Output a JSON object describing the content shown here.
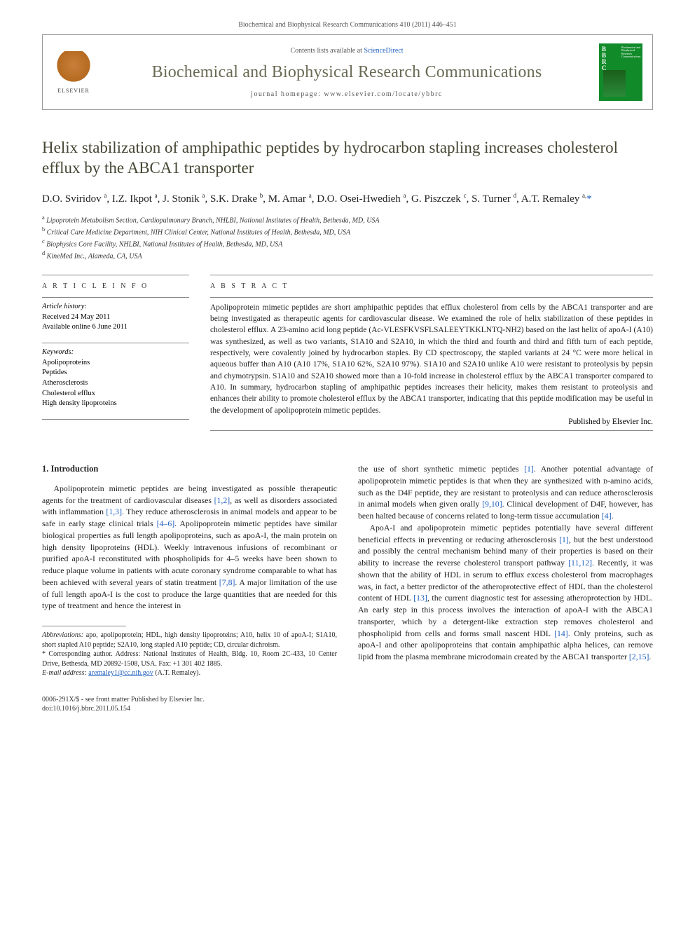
{
  "citation": "Biochemical and Biophysical Research Communications 410 (2011) 446–451",
  "header": {
    "contents_prefix": "Contents lists available at ",
    "contents_link": "ScienceDirect",
    "journal": "Biochemical and Biophysical Research Communications",
    "homepage_prefix": "journal homepage: ",
    "homepage": "www.elsevier.com/locate/ybbrc",
    "publisher": "ELSEVIER",
    "cover_abbr": "B\nB\nR\nC",
    "cover_side": "Biochemical and Biophysical Research Communications"
  },
  "title": "Helix stabilization of amphipathic peptides by hydrocarbon stapling increases cholesterol efflux by the ABCA1 transporter",
  "authors_html": "D.O. Sviridov <sup>a</sup>, I.Z. Ikpot <sup>a</sup>, J. Stonik <sup>a</sup>, S.K. Drake <sup>b</sup>, M. Amar <sup>a</sup>, D.O. Osei-Hwedieh <sup>a</sup>, G. Piszczek <sup>c</sup>, S. Turner <sup>d</sup>, A.T. Remaley <sup>a,</sup><span class=\"corr\">*</span>",
  "affiliations": [
    "a Lipoprotein Metabolism Section, Cardiopulmonary Branch, NHLBI, National Institutes of Health, Bethesda, MD, USA",
    "b Critical Care Medicine Department, NIH Clinical Center, National Institutes of Health, Bethesda, MD, USA",
    "c Biophysics Core Facility, NHLBI, National Institutes of Health, Bethesda, MD, USA",
    "d KineMed Inc., Alameda, CA, USA"
  ],
  "article_info_head": "A R T I C L E   I N F O",
  "abstract_head": "A B S T R A C T",
  "history": {
    "label": "Article history:",
    "received": "Received 24 May 2011",
    "online": "Available online 6 June 2011"
  },
  "keywords_label": "Keywords:",
  "keywords": [
    "Apolipoproteins",
    "Peptides",
    "Atherosclerosis",
    "Cholesterol efflux",
    "High density lipoproteins"
  ],
  "abstract": "Apolipoprotein mimetic peptides are short amphipathic peptides that efflux cholesterol from cells by the ABCA1 transporter and are being investigated as therapeutic agents for cardiovascular disease. We examined the role of helix stabilization of these peptides in cholesterol efflux. A 23-amino acid long peptide (Ac-VLESFKVSFLSALEEYTKKLNTQ-NH2) based on the last helix of apoA-I (A10) was synthesized, as well as two variants, S1A10 and S2A10, in which the third and fourth and third and fifth turn of each peptide, respectively, were covalently joined by hydrocarbon staples. By CD spectroscopy, the stapled variants at 24 °C were more helical in aqueous buffer than A10 (A10 17%, S1A10 62%, S2A10 97%). S1A10 and S2A10 unlike A10 were resistant to proteolysis by pepsin and chymotrypsin. S1A10 and S2A10 showed more than a 10-fold increase in cholesterol efflux by the ABCA1 transporter compared to A10. In summary, hydrocarbon stapling of amphipathic peptides increases their helicity, makes them resistant to proteolysis and enhances their ability to promote cholesterol efflux by the ABCA1 transporter, indicating that this peptide modification may be useful in the development of apolipoprotein mimetic peptides.",
  "abstract_publisher": "Published by Elsevier Inc.",
  "intro_heading": "1. Introduction",
  "col1": "Apolipoprotein mimetic peptides are being investigated as possible therapeutic agents for the treatment of cardiovascular diseases [1,2], as well as disorders associated with inflammation [1,3]. They reduce atherosclerosis in animal models and appear to be safe in early stage clinical trials [4–6]. Apolipoprotein mimetic peptides have similar biological properties as full length apolipoproteins, such as apoA-I, the main protein on high density lipoproteins (HDL). Weekly intravenous infusions of recombinant or purified apoA-I reconstituted with phospholipids for 4–5 weeks have been shown to reduce plaque volume in patients with acute coronary syndrome comparable to what has been achieved with several years of statin treatment [7,8]. A major limitation of the use of full length apoA-I is the cost to produce the large quantities that are needed for this type of treatment and hence the interest in",
  "col2a": "the use of short synthetic mimetic peptides [1]. Another potential advantage of apolipoprotein mimetic peptides is that when they are synthesized with ᴅ-amino acids, such as the D4F peptide, they are resistant to proteolysis and can reduce atherosclerosis in animal models when given orally [9,10]. Clinical development of D4F, however, has been halted because of concerns related to long-term tissue accumulation [4].",
  "col2b": "ApoA-I and apolipoprotein mimetic peptides potentially have several different beneficial effects in preventing or reducing atherosclerosis [1], but the best understood and possibly the central mechanism behind many of their properties is based on their ability to increase the reverse cholesterol transport pathway [11,12]. Recently, it was shown that the ability of HDL in serum to efflux excess cholesterol from macrophages was, in fact, a better predictor of the atheroprotective effect of HDL than the cholesterol content of HDL [13], the current diagnostic test for assessing atheroprotection by HDL. An early step in this process involves the interaction of apoA-I with the ABCA1 transporter, which by a detergent-like extraction step removes cholesterol and phospholipid from cells and forms small nascent HDL [14]. Only proteins, such as apoA-I and other apolipoproteins that contain amphipathic alpha helices, can remove lipid from the plasma membrane microdomain created by the ABCA1 transporter [2,15].",
  "footnotes": {
    "abbrev_label": "Abbreviations:",
    "abbrev": " apo, apolipoprotein; HDL, high density lipoproteins; A10, helix 10 of apoA-I; S1A10, short stapled A10 peptide; S2A10, long stapled A10 peptide; CD, circular dichroism.",
    "corr_label": "* Corresponding author. ",
    "corr": "Address: National Institutes of Health, Bldg. 10, Room 2C-433, 10 Center Drive, Bethesda, MD 20892-1508, USA. Fax: +1 301 402 1885.",
    "email_label": "E-mail address: ",
    "email": "aremaley1@cc.nih.gov",
    "email_suffix": " (A.T. Remaley)."
  },
  "bottom": {
    "line1": "0006-291X/$ - see front matter Published by Elsevier Inc.",
    "line2": "doi:10.1016/j.bbrc.2011.05.154"
  },
  "colors": {
    "link": "#2060c0",
    "journal": "#6a6a55",
    "title": "#474735",
    "cover": "#118a2a"
  }
}
